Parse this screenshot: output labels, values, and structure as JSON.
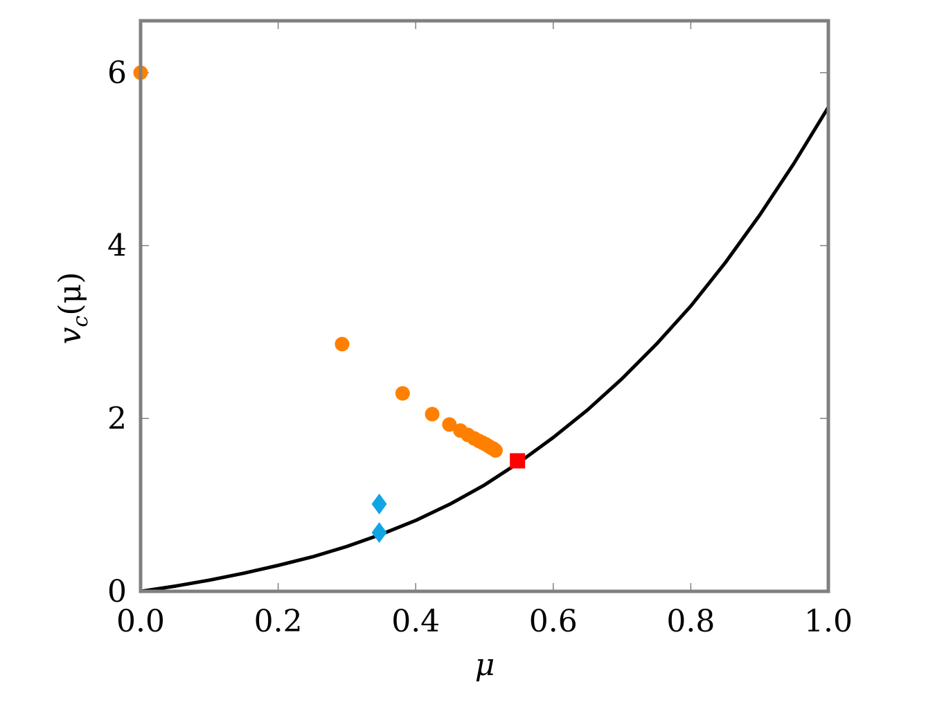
{
  "chart_data": {
    "type": "scatter",
    "xlabel": "μ",
    "ylabel": {
      "main": "v",
      "sub": "c",
      "rest": "(μ)"
    },
    "xlim": [
      0,
      1
    ],
    "ylim": [
      0,
      6.6
    ],
    "x_ticks": [
      0.0,
      0.2,
      0.4,
      0.6,
      0.8,
      1.0
    ],
    "x_tick_labels": [
      "0.0",
      "0.2",
      "0.4",
      "0.6",
      "0.8",
      "1.0"
    ],
    "y_ticks": [
      0,
      2,
      4,
      6
    ],
    "y_tick_labels": [
      "0",
      "2",
      "4",
      "6"
    ],
    "grid": false,
    "frame_color": "#808080",
    "series": [
      {
        "kind": "line",
        "color": "#000000",
        "x": [
          0.0,
          0.05,
          0.1,
          0.15,
          0.2,
          0.25,
          0.3,
          0.35,
          0.4,
          0.45,
          0.5,
          0.55,
          0.6,
          0.65,
          0.7,
          0.75,
          0.8,
          0.85,
          0.9,
          0.95,
          1.0
        ],
        "y": [
          0.0,
          0.06,
          0.13,
          0.21,
          0.3,
          0.4,
          0.52,
          0.66,
          0.82,
          1.01,
          1.23,
          1.49,
          1.78,
          2.1,
          2.46,
          2.86,
          3.3,
          3.8,
          4.35,
          4.95,
          5.6
        ]
      },
      {
        "kind": "points",
        "marker": "circle",
        "color": "#ff8000",
        "x": [
          0.0,
          0.293,
          0.381,
          0.424,
          0.449,
          0.465,
          0.476,
          0.485,
          0.492,
          0.497,
          0.502,
          0.506,
          0.51,
          0.513,
          0.516
        ],
        "y": [
          6.0,
          2.86,
          2.29,
          2.05,
          1.93,
          1.86,
          1.81,
          1.77,
          1.74,
          1.72,
          1.7,
          1.68,
          1.66,
          1.65,
          1.63
        ]
      },
      {
        "kind": "points",
        "marker": "diamond",
        "color": "#12a5e3",
        "x": [
          0.347,
          0.347
        ],
        "y": [
          1.01,
          0.68
        ]
      },
      {
        "kind": "points",
        "marker": "square",
        "color": "#ff0000",
        "x": [
          0.548
        ],
        "y": [
          1.51
        ]
      }
    ]
  }
}
